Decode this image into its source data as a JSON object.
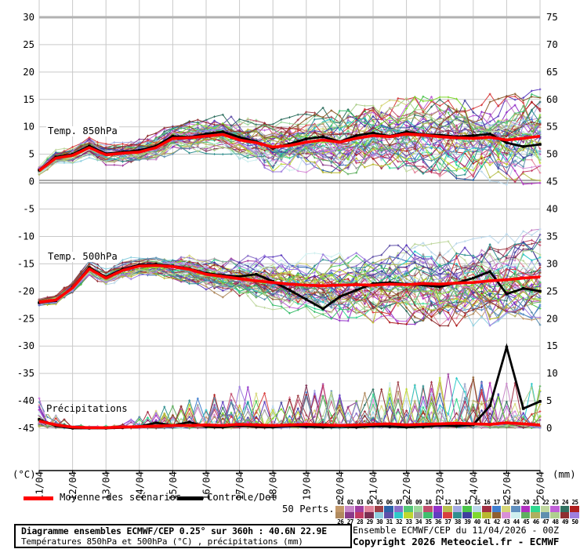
{
  "axes": {
    "unit_left": "(°C)",
    "unit_right": "(mm)",
    "y_left_ticks": [
      "30",
      "25",
      "20",
      "15",
      "10",
      "5",
      "0",
      "-5",
      "-10",
      "-15",
      "-20",
      "-25",
      "-30",
      "-35",
      "-40",
      "-45"
    ],
    "y_right_ticks": [
      "75",
      "70",
      "65",
      "60",
      "55",
      "50",
      "45",
      "40",
      "35",
      "30",
      "25",
      "20",
      "15",
      "10",
      "5",
      "0"
    ],
    "x_ticks": [
      "11/04",
      "12/04",
      "13/04",
      "14/04",
      "15/04",
      "16/04",
      "17/04",
      "18/04",
      "19/04",
      "20/04",
      "21/04",
      "22/04",
      "23/04",
      "24/04",
      "25/04",
      "26/04"
    ]
  },
  "legend": {
    "mean_label": "Moyenne des scénarios",
    "control_label": "Contrôle/Det",
    "perts_label": "50 Perts.",
    "pert_numbers": [
      "01",
      "02",
      "03",
      "04",
      "05",
      "06",
      "07",
      "08",
      "09",
      "10",
      "11",
      "12",
      "13",
      "14",
      "15",
      "16",
      "17",
      "18",
      "19",
      "20",
      "21",
      "22",
      "23",
      "24",
      "25",
      "26",
      "27",
      "28",
      "29",
      "30",
      "31",
      "32",
      "33",
      "34",
      "35",
      "36",
      "37",
      "38",
      "39",
      "40",
      "41",
      "42",
      "43",
      "44",
      "45",
      "46",
      "47",
      "48",
      "49",
      "50"
    ],
    "pert_colors": [
      "#c49a6c",
      "#c988c9",
      "#a13ea1",
      "#e2859b",
      "#9e3f47",
      "#2b63a8",
      "#8a6fc9",
      "#55c878",
      "#9bd89b",
      "#c24f6e",
      "#9232c9",
      "#b8c050",
      "#a3abe3",
      "#4bc44b",
      "#bbd8ea",
      "#a22f44",
      "#3f7fd0",
      "#d6d678",
      "#6090c0",
      "#b030c0",
      "#30d890",
      "#c0d8a0",
      "#c060d8",
      "#307060",
      "#b02020",
      "#b08a5e",
      "#8a3a8a",
      "#c23a63",
      "#7a2f52",
      "#8fd0e0",
      "#5f4fa8",
      "#2fc9c9",
      "#bfd82f",
      "#9f9f9f",
      "#3fbf6f",
      "#5f3fbf",
      "#d83f3f",
      "#2f8f8f",
      "#3f3f9f",
      "#7fd82f",
      "#b8b82f",
      "#8f5f2f",
      "#d88fd8",
      "#cfefef",
      "#5faf5f",
      "#afaf5f",
      "#5f8faf",
      "#afcf8f",
      "#8f2f2f",
      "#9f7fdf"
    ]
  },
  "footer": {
    "line1": "Diagramme ensembles ECMWF/CEP 0.25° sur 360h : 40.6N 22.9E",
    "line2": "Températures 850hPa et 500hPa (°C) , précipitations (mm)",
    "right1": "Ensemble ECMWF/CEP du 11/04/2026 - 00Z",
    "right2": "Copyright 2026 Meteociel.fr - ECMWF"
  },
  "colors": {
    "mean": "#ff0000",
    "control": "#000000",
    "grid": "#c9c9c9",
    "grid_strong": "#8e8e8e",
    "grid_top": "#b2b2b2",
    "axis": "#000000"
  },
  "chart_data": [
    {
      "id": "t850",
      "type": "line",
      "label": "Temp. 850hPa",
      "unit": "°C",
      "x_start": "11/04",
      "x_end": "26/04",
      "x_step_days": 0.5,
      "members": 50,
      "marker": "plus",
      "mean": [
        2.0,
        4.3,
        4.8,
        6.2,
        4.9,
        5.2,
        5.4,
        6.2,
        7.9,
        8.0,
        8.3,
        8.6,
        7.6,
        7.1,
        6.3,
        6.6,
        7.2,
        7.6,
        7.2,
        7.9,
        8.4,
        8.2,
        8.7,
        8.5,
        8.2,
        8.0,
        7.9,
        8.1,
        7.6,
        7.9,
        8.3
      ],
      "control": [
        2.1,
        4.5,
        5.0,
        6.5,
        5.1,
        5.4,
        5.7,
        6.5,
        8.3,
        8.1,
        8.7,
        9.1,
        8.1,
        7.3,
        6.1,
        6.9,
        7.8,
        8.2,
        7.3,
        8.4,
        8.9,
        8.3,
        9.1,
        8.6,
        8.5,
        8.2,
        8.4,
        8.7,
        7.1,
        6.4,
        6.8
      ],
      "spread": [
        0.7,
        0.8,
        0.9,
        1.0,
        1.1,
        1.2,
        1.3,
        1.4,
        1.5,
        1.6,
        1.7,
        1.9,
        2.1,
        2.3,
        2.5,
        2.7,
        2.9,
        3.1,
        3.2,
        3.3,
        3.4,
        3.5,
        3.6,
        3.7,
        3.8,
        3.9,
        4.0,
        4.2,
        4.3,
        4.4,
        4.5
      ]
    },
    {
      "id": "t500",
      "type": "line",
      "label": "Temp. 500hPa",
      "unit": "°C",
      "x_start": "11/04",
      "x_end": "26/04",
      "x_step_days": 0.5,
      "members": 50,
      "marker": "plus",
      "mean": [
        -22.0,
        -21.6,
        -19.4,
        -15.9,
        -17.6,
        -16.2,
        -15.4,
        -15.3,
        -15.5,
        -16.0,
        -16.9,
        -17.3,
        -17.7,
        -18.1,
        -18.4,
        -18.7,
        -18.9,
        -19.0,
        -18.9,
        -18.8,
        -18.9,
        -18.7,
        -18.8,
        -18.6,
        -18.7,
        -18.5,
        -18.4,
        -18.1,
        -17.9,
        -17.6,
        -17.4
      ],
      "control": [
        -22.1,
        -21.7,
        -19.3,
        -15.7,
        -17.4,
        -16.0,
        -15.2,
        -15.1,
        -15.4,
        -15.9,
        -16.7,
        -17.1,
        -17.3,
        -16.9,
        -18.2,
        -19.8,
        -21.5,
        -23.2,
        -21.0,
        -19.8,
        -18.6,
        -18.4,
        -18.7,
        -18.9,
        -19.2,
        -18.5,
        -17.6,
        -16.4,
        -20.5,
        -19.5,
        -20.0
      ],
      "spread": [
        0.5,
        0.6,
        0.7,
        0.8,
        0.9,
        1.0,
        1.1,
        1.2,
        1.4,
        1.6,
        1.8,
        2.0,
        2.2,
        2.4,
        2.6,
        2.8,
        3.0,
        3.2,
        3.4,
        3.5,
        3.6,
        3.7,
        3.8,
        3.9,
        4.0,
        4.1,
        4.2,
        4.3,
        4.4,
        4.5,
        4.6
      ]
    },
    {
      "id": "precip",
      "type": "line",
      "label": "Précipitations",
      "unit": "mm",
      "x_start": "11/04",
      "x_end": "26/04",
      "x_step_days": 0.5,
      "members": 50,
      "marker": "plus",
      "baseline_mm": 0,
      "axis_note": "0 mm aligns with -45 °C gridline",
      "mean": [
        1.3,
        0.6,
        0.2,
        0.1,
        0.1,
        0.2,
        0.3,
        0.4,
        0.5,
        0.5,
        0.6,
        0.5,
        0.7,
        0.6,
        0.5,
        0.6,
        0.7,
        0.6,
        0.5,
        0.6,
        0.7,
        0.8,
        0.6,
        0.7,
        0.8,
        0.9,
        0.8,
        0.7,
        1.0,
        0.8,
        0.6
      ],
      "control": [
        1.6,
        0.4,
        0.0,
        0.0,
        0.0,
        0.1,
        0.3,
        1.0,
        0.5,
        1.1,
        0.3,
        0.2,
        0.5,
        0.3,
        0.2,
        0.4,
        0.3,
        0.2,
        0.3,
        0.2,
        0.4,
        0.3,
        0.2,
        0.3,
        0.5,
        0.4,
        0.6,
        4.1,
        14.8,
        3.6,
        4.9
      ],
      "spread": [
        1.8,
        1.0,
        0.3,
        0.2,
        0.2,
        0.4,
        0.9,
        1.5,
        2.0,
        2.0,
        2.5,
        2.5,
        3.0,
        2.6,
        2.1,
        2.5,
        3.4,
        3.0,
        2.5,
        2.5,
        3.0,
        3.4,
        3.0,
        3.0,
        3.4,
        3.8,
        3.4,
        3.0,
        3.2,
        3.4,
        3.0
      ]
    }
  ]
}
